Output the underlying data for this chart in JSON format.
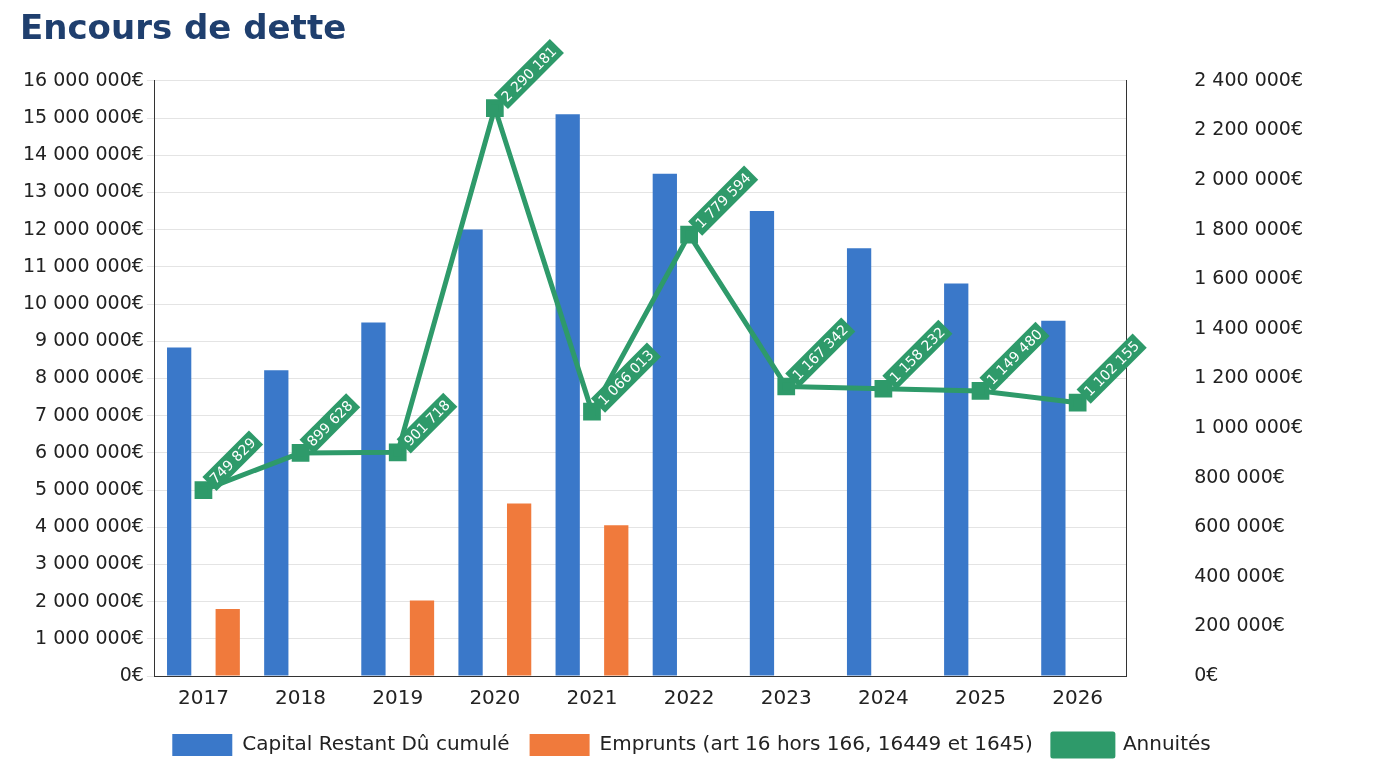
{
  "chart_data": {
    "type": "bar",
    "title": "Encours de dette",
    "categories": [
      "2017",
      "2018",
      "2019",
      "2020",
      "2021",
      "2022",
      "2023",
      "2024",
      "2025",
      "2026"
    ],
    "series": [
      {
        "name": "Capital Restant Dû cumulé",
        "color": "#3a78c9",
        "values": [
          8830000,
          8220000,
          9500000,
          12000000,
          15100000,
          13500000,
          12500000,
          11500000,
          10550000,
          9550000
        ]
      },
      {
        "name": "Emprunts (art 16 hors 166, 16449 et 1645)",
        "color": "#f07a3c",
        "values": [
          1800000,
          null,
          2030000,
          4640000,
          4050000,
          null,
          null,
          null,
          null,
          null
        ]
      },
      {
        "name": "Annuités",
        "type": "line",
        "axis": "y2",
        "color": "#2e9a6a",
        "marker": "square",
        "values": [
          749829,
          899628,
          901718,
          2290181,
          1066013,
          1779594,
          1167342,
          1158232,
          1149480,
          1102155
        ],
        "value_labels": [
          "749 829",
          "899 628",
          "901 718",
          "2 290 181",
          "1 066 013",
          "1 779 594",
          "1 167 342",
          "1 158 232",
          "1 149 480",
          "1 102 155"
        ]
      }
    ],
    "ylim": [
      0,
      16000000
    ],
    "yticks": [
      {
        "value": 0,
        "label": "0€"
      },
      {
        "value": 1000000,
        "label": "1 000 000€"
      },
      {
        "value": 2000000,
        "label": "2 000 000€"
      },
      {
        "value": 3000000,
        "label": "3 000 000€"
      },
      {
        "value": 4000000,
        "label": "4 000 000€"
      },
      {
        "value": 5000000,
        "label": "5 000 000€"
      },
      {
        "value": 6000000,
        "label": "6 000 000€"
      },
      {
        "value": 7000000,
        "label": "7 000 000€"
      },
      {
        "value": 8000000,
        "label": "8 000 000€"
      },
      {
        "value": 9000000,
        "label": "9 000 000€"
      },
      {
        "value": 10000000,
        "label": "10 000 000€"
      },
      {
        "value": 11000000,
        "label": "11 000 000€"
      },
      {
        "value": 12000000,
        "label": "12 000 000€"
      },
      {
        "value": 13000000,
        "label": "13 000 000€"
      },
      {
        "value": 14000000,
        "label": "14 000 000€"
      },
      {
        "value": 15000000,
        "label": "15 000 000€"
      },
      {
        "value": 16000000,
        "label": "16 000 000€"
      }
    ],
    "y2lim": [
      0,
      2400000
    ],
    "y2ticks": [
      {
        "value": 0,
        "label": "0€"
      },
      {
        "value": 200000,
        "label": "200 000€"
      },
      {
        "value": 400000,
        "label": "400 000€"
      },
      {
        "value": 600000,
        "label": "600 000€"
      },
      {
        "value": 800000,
        "label": "800 000€"
      },
      {
        "value": 1000000,
        "label": "1 000 000€"
      },
      {
        "value": 1200000,
        "label": "1 200 000€"
      },
      {
        "value": 1400000,
        "label": "1 400 000€"
      },
      {
        "value": 1600000,
        "label": "1 600 000€"
      },
      {
        "value": 1800000,
        "label": "1 800 000€"
      },
      {
        "value": 2000000,
        "label": "2 000 000€"
      },
      {
        "value": 2200000,
        "label": "2 200 000€"
      },
      {
        "value": 2400000,
        "label": "2 400 000€"
      }
    ],
    "grid": "y",
    "legend": "bottom"
  }
}
